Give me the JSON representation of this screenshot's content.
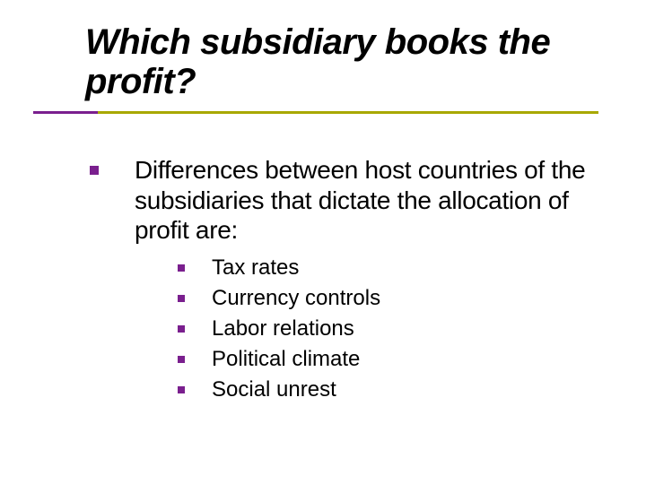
{
  "colors": {
    "accent_purple": "#7a1f8e",
    "accent_olive": "#a8a800",
    "bullet_purple": "#7a1f8e",
    "text": "#000000",
    "background": "#ffffff"
  },
  "typography": {
    "title_fontsize": 40,
    "title_style": "italic",
    "level1_fontsize": 28,
    "level2_fontsize": 24,
    "font_family": "Verdana"
  },
  "layout": {
    "slide_width": 720,
    "slide_height": 540,
    "rule_purple_width": 72,
    "rule_olive_width": 558,
    "rule_height": 3
  },
  "title": "Which subsidiary books the profit?",
  "level1": {
    "text": "Differences between host countries of the subsidiaries that dictate the allocation of profit are:"
  },
  "level2_items": [
    {
      "text": "Tax rates"
    },
    {
      "text": "Currency controls"
    },
    {
      "text": "Labor relations"
    },
    {
      "text": "Political climate"
    },
    {
      "text": "Social unrest"
    }
  ]
}
